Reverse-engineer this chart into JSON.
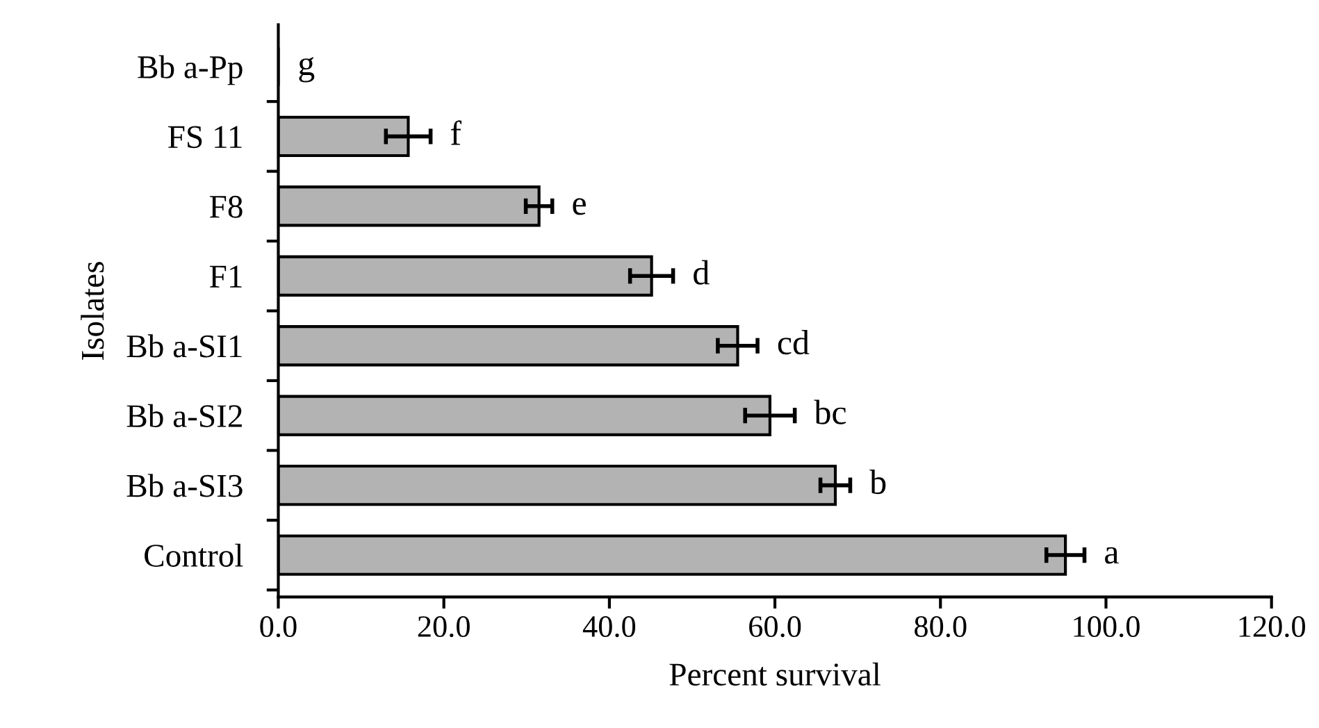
{
  "chart_data": {
    "type": "bar",
    "orientation": "horizontal",
    "xlabel": "Percent survival",
    "ylabel": "Isolates",
    "categories": [
      "Bb a-Pp",
      "FS 11",
      "F8",
      "F1",
      "Bb a-SI1",
      "Bb a-SI2",
      "Bb a-SI3",
      "Control"
    ],
    "values": [
      0,
      15.7,
      31.5,
      45.1,
      55.5,
      59.4,
      67.3,
      95.1
    ],
    "errors": [
      null,
      2.7,
      1.6,
      2.6,
      2.4,
      3.0,
      1.8,
      2.3
    ],
    "color": "#b3b3b3",
    "xlim": [
      0,
      120
    ],
    "xticks": [
      {
        "value": 0,
        "label": "0.0"
      },
      {
        "value": 20,
        "label": "20.0"
      },
      {
        "value": 40,
        "label": "40.0"
      },
      {
        "value": 60,
        "label": "60.0"
      },
      {
        "value": 80,
        "label": "80.0"
      },
      {
        "value": 100,
        "label": "100.0"
      },
      {
        "value": 120,
        "label": "120.0"
      }
    ],
    "grid": false,
    "legend": false,
    "annotations": [
      {
        "text": "g",
        "x": 0,
        "y": "Bb a-Pp"
      },
      {
        "text": "f",
        "x": 15.7,
        "y": "FS 11"
      },
      {
        "text": "e",
        "x": 31.5,
        "y": "F8"
      },
      {
        "text": "d",
        "x": 45.1,
        "y": "F1"
      },
      {
        "text": "cd",
        "x": 55.5,
        "y": "Bb a-SI1"
      },
      {
        "text": "bc",
        "x": 59.4,
        "y": "Bb a-SI2"
      },
      {
        "text": "b",
        "x": 67.3,
        "y": "Bb a-SI3"
      },
      {
        "text": "a",
        "x": 95.1,
        "y": "Control"
      }
    ]
  }
}
